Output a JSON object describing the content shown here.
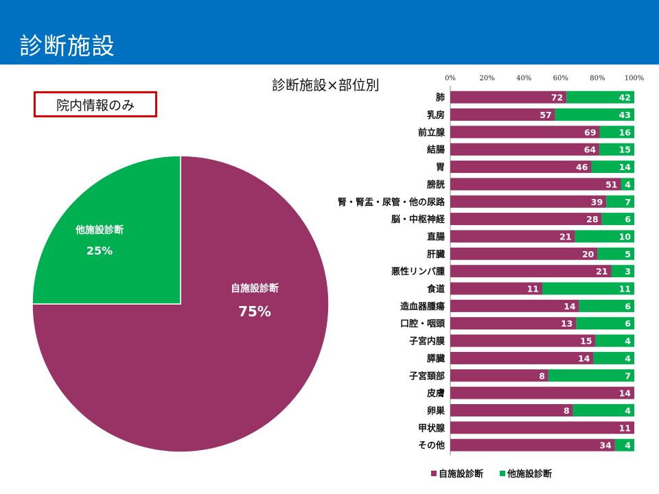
{
  "page": {
    "title": "診断施設",
    "scope_label": "院内情報のみ"
  },
  "colors": {
    "header": "#0070c0",
    "self": "#993366",
    "other": "#00b050",
    "scope_border": "#e00000"
  },
  "chart_data": [
    {
      "type": "pie",
      "slices": [
        {
          "label": "自施設診断",
          "value": 75,
          "value_label": "75%"
        },
        {
          "label": "他施設診断",
          "value": 25,
          "value_label": "25%"
        }
      ]
    },
    {
      "type": "bar",
      "orientation": "horizontal",
      "stacked": "percent",
      "title": "診断施設×部位別",
      "x_ticks": [
        "0%",
        "20%",
        "40%",
        "60%",
        "80%",
        "100%"
      ],
      "xlim": [
        0,
        100
      ],
      "legend": "bottom",
      "categories": [
        "肺",
        "乳房",
        "前立腺",
        "結腸",
        "胃",
        "膀胱",
        "腎・腎盂・尿管・他の尿路",
        "脳・中枢神経",
        "直腸",
        "肝臓",
        "悪性リンパ腫",
        "食道",
        "造血器腫瘍",
        "口腔・咽頭",
        "子宮内膜",
        "膵臓",
        "子宮頚部",
        "皮膚",
        "卵巣",
        "甲状腺",
        "その他"
      ],
      "series": [
        {
          "name": "自施設診断",
          "values": [
            72,
            57,
            69,
            64,
            46,
            51,
            39,
            28,
            21,
            20,
            21,
            11,
            14,
            13,
            15,
            14,
            8,
            14,
            8,
            11,
            34
          ]
        },
        {
          "name": "他施設診断",
          "values": [
            42,
            43,
            16,
            15,
            14,
            4,
            7,
            6,
            10,
            5,
            3,
            11,
            6,
            6,
            4,
            4,
            7,
            0,
            4,
            0,
            4
          ]
        }
      ]
    }
  ]
}
